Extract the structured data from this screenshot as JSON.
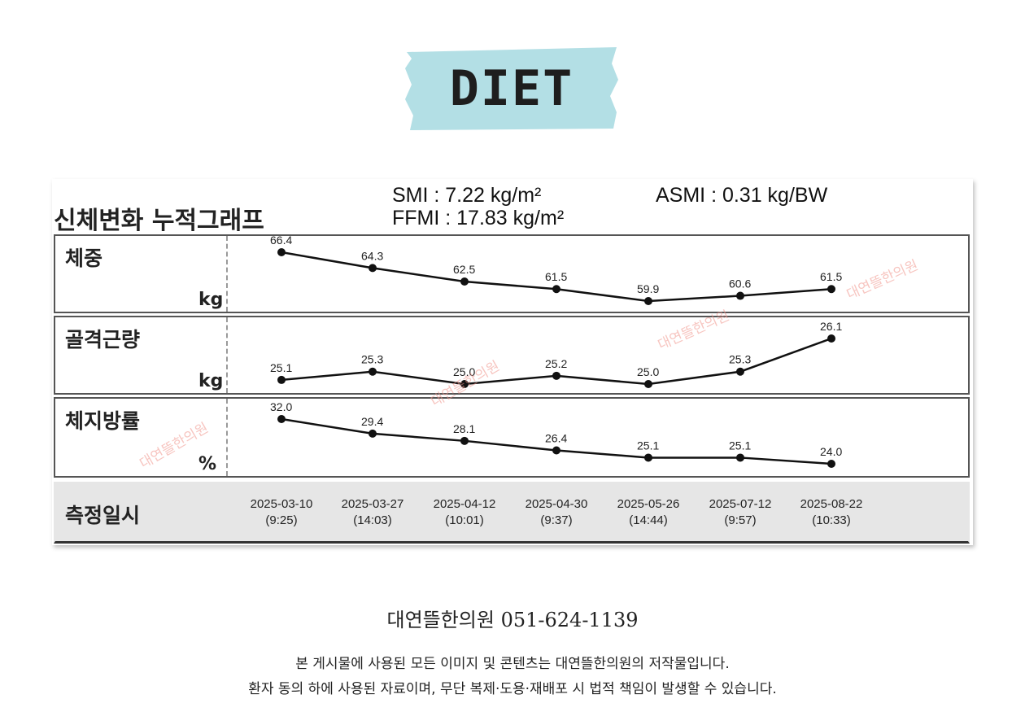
{
  "banner": {
    "label": "DIET",
    "tape_color": "#b3dfe5"
  },
  "panel": {
    "title": "신체변화 누적그래프",
    "smi": "SMI : 7.22 kg/m²",
    "ffmi": "FFMI : 17.83 kg/m²",
    "asmi": "ASMI : 0.31 kg/BW"
  },
  "chart_data": {
    "type": "line",
    "categories": [
      {
        "date": "2025-03-10",
        "time": "(9:25)"
      },
      {
        "date": "2025-03-27",
        "time": "(14:03)"
      },
      {
        "date": "2025-04-12",
        "time": "(10:01)"
      },
      {
        "date": "2025-04-30",
        "time": "(9:37)"
      },
      {
        "date": "2025-05-26",
        "time": "(14:44)"
      },
      {
        "date": "2025-07-12",
        "time": "(9:57)"
      },
      {
        "date": "2025-08-22",
        "time": "(10:33)"
      }
    ],
    "series": [
      {
        "name": "체중",
        "unit": "kg",
        "values": [
          66.4,
          64.3,
          62.5,
          61.5,
          59.9,
          60.6,
          61.5
        ],
        "labels": [
          "66.4",
          "64.3",
          "62.5",
          "61.5",
          "59.9",
          "60.6",
          "61.5"
        ]
      },
      {
        "name": "골격근량",
        "unit": "kg",
        "values": [
          25.1,
          25.3,
          25.0,
          25.2,
          25.0,
          25.3,
          26.1
        ],
        "labels": [
          "25.1",
          "25.3",
          "25.0",
          "25.2",
          "25.0",
          "25.3",
          "26.1"
        ]
      },
      {
        "name": "체지방률",
        "unit": "%",
        "values": [
          32.0,
          29.4,
          28.1,
          26.4,
          25.1,
          25.1,
          24.0
        ],
        "labels": [
          "32.0",
          "29.4",
          "28.1",
          "26.4",
          "25.1",
          "25.1",
          "24.0"
        ]
      }
    ],
    "date_row_label": "측정일시",
    "line_color": "#111111"
  },
  "watermark": "대연뜰한의원",
  "footer": {
    "clinic_phone": "대연뜰한의원  051-624-1139",
    "line1": "본 게시물에 사용된 모든 이미지 및 콘텐츠는 대연뜰한의원의 저작물입니다.",
    "line2": "환자 동의 하에 사용된 자료이며, 무단 복제·도용·재배포 시 법적 책임이 발생할 수 있습니다."
  }
}
